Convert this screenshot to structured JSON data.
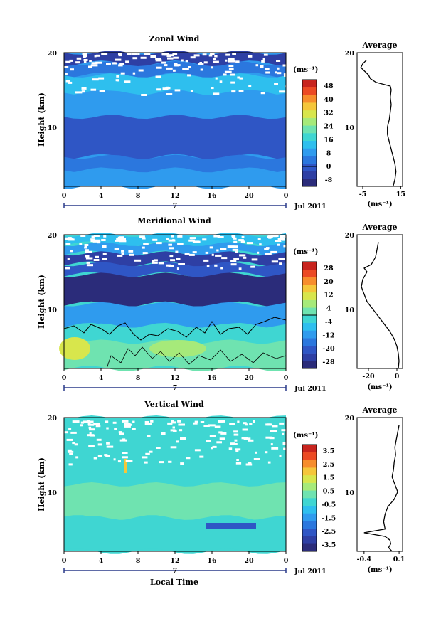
{
  "chart_data": [
    {
      "type": "heatmap",
      "title": "Zonal Wind",
      "ylabel": "Height (km)",
      "y_ticks": [
        "20",
        "10"
      ],
      "ylim": [
        2,
        20
      ],
      "x_ticks": [
        "0",
        "4",
        "8",
        "12",
        "16",
        "20",
        "0"
      ],
      "date_label": "7",
      "month_label": "Jul 2011",
      "colorbar_unit": "(ms⁻¹)",
      "colorbar_ticks": [
        "48",
        "40",
        "32",
        "24",
        "16",
        "8",
        "0",
        "-8"
      ],
      "colorbar_colors": [
        "#2b2c7a",
        "#2e3fa4",
        "#2f56c5",
        "#2b77de",
        "#2f9bee",
        "#2ebfee",
        "#3fd6d2",
        "#6fe3b0",
        "#a6ea7a",
        "#d8e64c",
        "#f5c63a",
        "#f78d2c",
        "#ec4a24",
        "#c8241e"
      ],
      "profile": {
        "title": "Average",
        "x_ticks": [
          "-5",
          "15"
        ],
        "xlim": [
          -8,
          16
        ],
        "unit": "(ms⁻¹)",
        "height_km": [
          2,
          3,
          4,
          5,
          6,
          7,
          8,
          9,
          10,
          11,
          12,
          13,
          14,
          15,
          15.5,
          16,
          16.5,
          17,
          17.5,
          18,
          18.5,
          19
        ],
        "values": [
          11,
          12,
          12.5,
          12,
          11,
          10,
          9,
          8,
          8,
          9,
          9.5,
          10,
          9.5,
          10,
          9.5,
          2,
          -1,
          -2,
          -4,
          -6,
          -5,
          -3
        ]
      }
    },
    {
      "type": "heatmap",
      "title": "Meridional Wind",
      "ylabel": "Height (km)",
      "y_ticks": [
        "20",
        "10"
      ],
      "ylim": [
        2,
        20
      ],
      "x_ticks": [
        "0",
        "4",
        "8",
        "12",
        "16",
        "20",
        "0"
      ],
      "date_label": "7",
      "month_label": "Jul 2011",
      "colorbar_unit": "(ms⁻¹)",
      "colorbar_ticks": [
        "28",
        "20",
        "12",
        "4",
        "-4",
        "-12",
        "-20",
        "-28"
      ],
      "colorbar_colors": [
        "#2b2c7a",
        "#2e3fa4",
        "#2f56c5",
        "#2b77de",
        "#2f9bee",
        "#2ebfee",
        "#3fd6d2",
        "#6fe3b0",
        "#a6ea7a",
        "#d8e64c",
        "#f5c63a",
        "#f78d2c",
        "#ec4a24",
        "#c8241e"
      ],
      "profile": {
        "title": "Average",
        "x_ticks": [
          "-20",
          "0"
        ],
        "xlim": [
          -28,
          4
        ],
        "unit": "(ms⁻¹)",
        "height_km": [
          2,
          3,
          4,
          5,
          6,
          7,
          8,
          9,
          10,
          11,
          12,
          13,
          14,
          15,
          15.5,
          16,
          17,
          18,
          19
        ],
        "values": [
          1,
          1.5,
          1,
          0,
          -2,
          -5,
          -9,
          -13,
          -17,
          -21,
          -23,
          -25,
          -24,
          -21,
          -23,
          -18,
          -15,
          -14,
          -13
        ]
      }
    },
    {
      "type": "heatmap",
      "title": "Vertical Wind",
      "ylabel": "Height (km)",
      "y_ticks": [
        "20",
        "10"
      ],
      "ylim": [
        2,
        20
      ],
      "x_ticks": [
        "0",
        "4",
        "8",
        "12",
        "16",
        "20",
        "0"
      ],
      "date_label": "7",
      "month_label": "Jul 2011",
      "xlabel": "Local Time",
      "colorbar_unit": "(ms⁻¹)",
      "colorbar_ticks": [
        "3.5",
        "2.5",
        "1.5",
        "0.5",
        "-0.5",
        "-1.5",
        "-2.5",
        "-3.5"
      ],
      "colorbar_colors": [
        "#2b2c7a",
        "#2e3fa4",
        "#2f56c5",
        "#2b77de",
        "#2f9bee",
        "#2ebfee",
        "#3fd6d2",
        "#6fe3b0",
        "#a6ea7a",
        "#d8e64c",
        "#f5c63a",
        "#f78d2c",
        "#ec4a24",
        "#c8241e"
      ],
      "profile": {
        "title": "Average",
        "x_ticks": [
          "-0.4",
          "0.1"
        ],
        "xlim": [
          -0.5,
          0.15
        ],
        "unit": "(ms⁻¹)",
        "height_km": [
          2,
          2.5,
          3,
          3.5,
          4,
          4.5,
          5,
          6,
          7,
          8,
          9,
          10,
          11,
          12,
          13,
          14,
          15,
          16,
          17,
          18,
          19
        ],
        "values": [
          0,
          -0.05,
          -0.02,
          -0.03,
          -0.1,
          -0.4,
          -0.1,
          -0.12,
          -0.1,
          -0.06,
          0.03,
          0.08,
          0.04,
          0.0,
          0.02,
          0.03,
          0.05,
          0.04,
          0.06,
          0.08,
          0.1
        ]
      }
    }
  ]
}
